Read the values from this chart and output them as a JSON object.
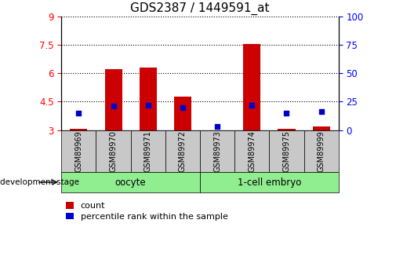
{
  "title": "GDS2387 / 1449591_at",
  "samples": [
    "GSM89969",
    "GSM89970",
    "GSM89971",
    "GSM89972",
    "GSM89973",
    "GSM89974",
    "GSM89975",
    "GSM89999"
  ],
  "count_values": [
    3.05,
    6.2,
    6.3,
    4.75,
    3.0,
    7.55,
    3.05,
    3.2
  ],
  "percentile_values": [
    15,
    21,
    22,
    20,
    3,
    22,
    15,
    16
  ],
  "ylim_left": [
    3,
    9
  ],
  "ylim_right": [
    0,
    100
  ],
  "yticks_left": [
    3,
    4.5,
    6,
    7.5,
    9
  ],
  "yticks_right": [
    0,
    25,
    50,
    75,
    100
  ],
  "groups": [
    {
      "label": "oocyte",
      "color": "#90ee90",
      "start": 0,
      "end": 3
    },
    {
      "label": "1-cell embryo",
      "color": "#90ee90",
      "start": 4,
      "end": 7
    }
  ],
  "bar_color": "#cc0000",
  "percentile_color": "#0000cc",
  "bar_width": 0.5,
  "bar_bottom": 3.0,
  "background_color": "#ffffff",
  "legend_count_label": "count",
  "legend_percentile_label": "percentile rank within the sample",
  "xlabel": "development stage",
  "group_box_color": "#c8c8c8",
  "grid_color": "#000000",
  "title_fontsize": 11,
  "tick_fontsize": 8.5
}
